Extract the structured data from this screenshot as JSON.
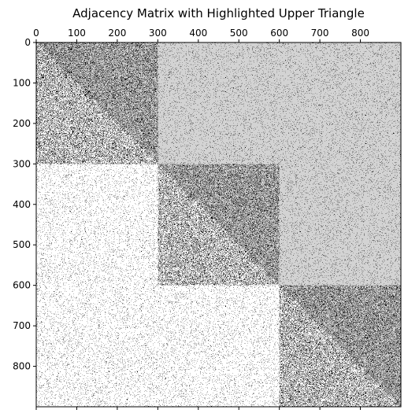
{
  "chart_data": {
    "type": "heatmap",
    "title": "Adjacency Matrix with Highlighted Upper Triangle",
    "xlabel": "",
    "ylabel": "",
    "n": 900,
    "xlim": [
      0,
      900
    ],
    "ylim": [
      900,
      0
    ],
    "x_ticks": [
      0,
      100,
      200,
      300,
      400,
      500,
      600,
      700,
      800
    ],
    "y_ticks": [
      0,
      100,
      200,
      300,
      400,
      500,
      600,
      700,
      800
    ],
    "x_tick_labels": [
      "0",
      "100",
      "200",
      "300",
      "400",
      "500",
      "600",
      "700",
      "800"
    ],
    "y_tick_labels": [
      "0",
      "100",
      "200",
      "300",
      "400",
      "500",
      "600",
      "700",
      "800"
    ],
    "x_ticks_position": "top",
    "blocks": [
      {
        "start": 0,
        "end": 300
      },
      {
        "start": 300,
        "end": 600
      },
      {
        "start": 600,
        "end": 900
      }
    ],
    "edge_density_within_block": 0.3,
    "edge_density_between_blocks": 0.05,
    "upper_triangle_highlight_color": "#d3d3d3",
    "edge_color": "#000000",
    "background_color": "#ffffff",
    "grid": false,
    "legend": "none"
  }
}
